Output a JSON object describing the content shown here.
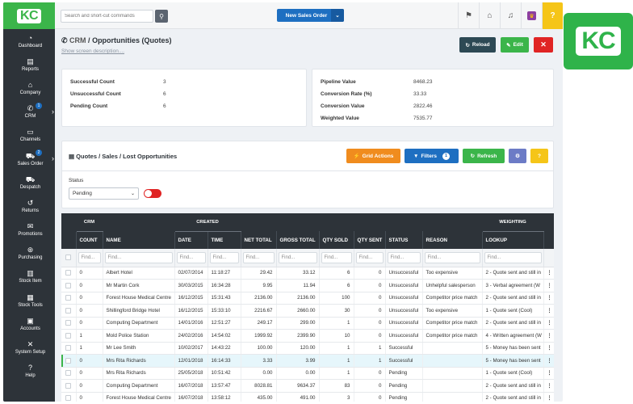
{
  "brand": {
    "logo_text": "KC",
    "badge_text": "KC"
  },
  "sidebar": {
    "items": [
      {
        "label": "Dashboard",
        "icon": "dashboard-icon",
        "glyph": "◔"
      },
      {
        "label": "Reports",
        "icon": "reports-icon",
        "glyph": "▤"
      },
      {
        "label": "Company",
        "icon": "company-icon",
        "glyph": "⌂"
      },
      {
        "label": "CRM",
        "icon": "phone-icon",
        "glyph": "✆",
        "badge": "1",
        "chevron": "›"
      },
      {
        "label": "Channels",
        "icon": "channels-icon",
        "glyph": "▭"
      },
      {
        "label": "Sales Order",
        "icon": "cart-icon",
        "glyph": "⛟",
        "badge": "2",
        "chevron": "›"
      },
      {
        "label": "Despatch",
        "icon": "truck-icon",
        "glyph": "⛟"
      },
      {
        "label": "Returns",
        "icon": "returns-icon",
        "glyph": "↺"
      },
      {
        "label": "Promotions",
        "icon": "megaphone-icon",
        "glyph": "✉"
      },
      {
        "label": "Purchasing",
        "icon": "purchasing-icon",
        "glyph": "⊛"
      },
      {
        "label": "Stock Item",
        "icon": "stock-item-icon",
        "glyph": "▥"
      },
      {
        "label": "Stock Tools",
        "icon": "stock-tools-icon",
        "glyph": "▦"
      },
      {
        "label": "Accounts",
        "icon": "accounts-icon",
        "glyph": "▣"
      },
      {
        "label": "System Setup",
        "icon": "wrench-icon",
        "glyph": "✕"
      },
      {
        "label": "Help",
        "icon": "help-icon",
        "glyph": "?"
      }
    ]
  },
  "header": {
    "search_placeholder": "Search and short-cut commands",
    "search_glyph": "⚲",
    "new_sales_label": "New Sales Order",
    "new_sales_dropdown_glyph": "⌄",
    "icons": [
      {
        "name": "flag-icon",
        "glyph": "⚑"
      },
      {
        "name": "bank-icon",
        "glyph": "⌂"
      },
      {
        "name": "bell-icon",
        "glyph": "♫"
      },
      {
        "name": "app-icon",
        "glyph": "♛"
      },
      {
        "name": "help-icon",
        "glyph": "?"
      }
    ]
  },
  "page": {
    "title_prefix": "CRM",
    "title_sep": " / ",
    "title": "Opportunities (Quotes)",
    "description_link": "Show screen description....",
    "reload_label": "Reload",
    "edit_label": "Edit",
    "close_glyph": "✕"
  },
  "stats_left": [
    {
      "label": "Successful Count",
      "value": "3"
    },
    {
      "label": "Unsuccessful Count",
      "value": "6"
    },
    {
      "label": "Pending Count",
      "value": "6"
    }
  ],
  "stats_right": [
    {
      "label": "Pipeline Value",
      "value": "8468.23"
    },
    {
      "label": "Conversion Rate (%)",
      "value": "33.33"
    },
    {
      "label": "Conversion Value",
      "value": "2822.46"
    },
    {
      "label": "Weighted Value",
      "value": "7535.77"
    }
  ],
  "grid": {
    "title": "Quotes / Sales / Lost Opportunities",
    "actions_label": "Grid Actions",
    "filters_label": "Filters",
    "filters_count": "1",
    "refresh_label": "Refresh",
    "help_glyph": "?",
    "status_label": "Status",
    "status_value": "Pending"
  },
  "table": {
    "groups": {
      "crm": "CRM",
      "created": "CREATED",
      "weighting": "WEIGHTING"
    },
    "columns": [
      "COUNT",
      "NAME",
      "DATE",
      "TIME",
      "NET TOTAL",
      "GROSS TOTAL",
      "QTY SOLD",
      "QTY SENT",
      "STATUS",
      "REASON",
      "LOOKUP"
    ],
    "filter_placeholder": "Find...",
    "rows": [
      {
        "count": "0",
        "name": "Albert Hotel",
        "date": "02/07/2014",
        "time": "11:18:27",
        "net": "29.42",
        "gross": "33.12",
        "sold": "6",
        "sent": "0",
        "status": "Unsuccessful",
        "reason": "Too expensive",
        "lookup": "2 - Quote sent and still in"
      },
      {
        "count": "0",
        "name": "Mr Martin Cork",
        "date": "30/03/2015",
        "time": "16:34:28",
        "net": "9.95",
        "gross": "11.94",
        "sold": "6",
        "sent": "0",
        "status": "Unsuccessful",
        "reason": "Unhelpful salesperson",
        "lookup": "3 - Verbal agreement (W"
      },
      {
        "count": "0",
        "name": "Forest House Medical Centre",
        "date": "16/12/2015",
        "time": "15:31:43",
        "net": "2136.00",
        "gross": "2136.00",
        "sold": "100",
        "sent": "0",
        "status": "Unsuccessful",
        "reason": "Competitor price match",
        "lookup": "2 - Quote sent and still in"
      },
      {
        "count": "0",
        "name": "Shillingford Bridge Hotel",
        "date": "16/12/2015",
        "time": "15:33:10",
        "net": "2216.67",
        "gross": "2660.00",
        "sold": "30",
        "sent": "0",
        "status": "Unsuccessful",
        "reason": "Too expensive",
        "lookup": "1 - Quote sent (Cool)"
      },
      {
        "count": "0",
        "name": "Computing Department",
        "date": "14/01/2016",
        "time": "12:51:27",
        "net": "249.17",
        "gross": "299.00",
        "sold": "1",
        "sent": "0",
        "status": "Unsuccessful",
        "reason": "Competitor price match",
        "lookup": "2 - Quote sent and still in"
      },
      {
        "count": "1",
        "name": "Mold Police Station",
        "date": "24/02/2016",
        "time": "14:54:02",
        "net": "1999.92",
        "gross": "2399.90",
        "sold": "10",
        "sent": "0",
        "status": "Unsuccessful",
        "reason": "Competitor price match",
        "lookup": "4 - Written agreement (W"
      },
      {
        "count": "1",
        "name": "Mr Lee Smith",
        "date": "10/02/2017",
        "time": "14:43:22",
        "net": "100.00",
        "gross": "120.00",
        "sold": "1",
        "sent": "1",
        "status": "Successful",
        "reason": "",
        "lookup": "5 - Money has been sent"
      },
      {
        "count": "0",
        "name": "Mrs Rita Richards",
        "date": "12/01/2018",
        "time": "16:14:33",
        "net": "3.33",
        "gross": "3.99",
        "sold": "1",
        "sent": "1",
        "status": "Successful",
        "reason": "",
        "lookup": "5 - Money has been sent",
        "highlight": true
      },
      {
        "count": "0",
        "name": "Mrs Rita Richards",
        "date": "25/05/2018",
        "time": "10:51:42",
        "net": "0.00",
        "gross": "0.00",
        "sold": "1",
        "sent": "0",
        "status": "Pending",
        "reason": "",
        "lookup": "1 - Quote sent (Cool)"
      },
      {
        "count": "0",
        "name": "Computing Department",
        "date": "16/07/2018",
        "time": "13:57:47",
        "net": "8028.81",
        "gross": "9634.37",
        "sold": "83",
        "sent": "0",
        "status": "Pending",
        "reason": "",
        "lookup": "2 - Quote sent and still in"
      },
      {
        "count": "0",
        "name": "Forest House Medical Centre",
        "date": "16/07/2018",
        "time": "13:58:12",
        "net": "435.00",
        "gross": "491.00",
        "sold": "3",
        "sent": "0",
        "status": "Pending",
        "reason": "",
        "lookup": "2 - Quote sent and still in"
      }
    ],
    "row_menu_glyph": "⋮"
  }
}
